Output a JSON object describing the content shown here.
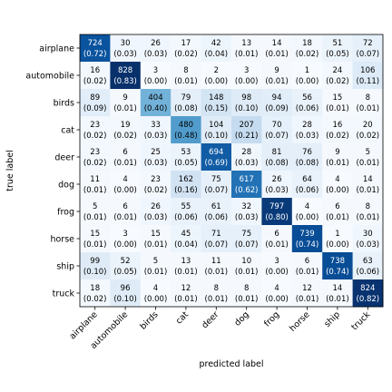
{
  "chart_data": {
    "type": "heatmap",
    "title": "",
    "xlabel": "predicted label",
    "ylabel": "true label",
    "x_categories": [
      "airplane",
      "automobile",
      "birds",
      "cat",
      "deer",
      "dog",
      "frog",
      "horse",
      "ship",
      "truck"
    ],
    "y_categories": [
      "airplane",
      "automobile",
      "birds",
      "cat",
      "deer",
      "dog",
      "frog",
      "horse",
      "ship",
      "truck"
    ],
    "counts": [
      [
        724,
        30,
        26,
        17,
        42,
        13,
        14,
        18,
        51,
        72
      ],
      [
        16,
        828,
        3,
        8,
        2,
        3,
        9,
        1,
        24,
        106
      ],
      [
        89,
        9,
        404,
        79,
        148,
        98,
        94,
        56,
        15,
        8
      ],
      [
        23,
        19,
        33,
        480,
        104,
        207,
        70,
        28,
        16,
        20
      ],
      [
        23,
        6,
        25,
        53,
        694,
        28,
        81,
        76,
        9,
        5
      ],
      [
        11,
        4,
        23,
        162,
        75,
        617,
        26,
        64,
        4,
        14
      ],
      [
        5,
        6,
        26,
        55,
        61,
        32,
        797,
        4,
        6,
        8
      ],
      [
        15,
        3,
        15,
        45,
        71,
        75,
        6,
        739,
        1,
        30
      ],
      [
        99,
        52,
        5,
        13,
        11,
        10,
        3,
        6,
        738,
        63
      ],
      [
        18,
        96,
        4,
        12,
        8,
        8,
        4,
        12,
        14,
        824
      ]
    ],
    "normalized": [
      [
        "0.72",
        "0.03",
        "0.03",
        "0.02",
        "0.04",
        "0.01",
        "0.01",
        "0.02",
        "0.05",
        "0.07"
      ],
      [
        "0.02",
        "0.83",
        "0.00",
        "0.01",
        "0.00",
        "0.00",
        "0.01",
        "0.00",
        "0.02",
        "0.11"
      ],
      [
        "0.09",
        "0.01",
        "0.40",
        "0.08",
        "0.15",
        "0.10",
        "0.09",
        "0.06",
        "0.01",
        "0.01"
      ],
      [
        "0.02",
        "0.02",
        "0.03",
        "0.48",
        "0.10",
        "0.21",
        "0.07",
        "0.03",
        "0.02",
        "0.02"
      ],
      [
        "0.02",
        "0.01",
        "0.03",
        "0.05",
        "0.69",
        "0.03",
        "0.08",
        "0.08",
        "0.01",
        "0.01"
      ],
      [
        "0.01",
        "0.00",
        "0.02",
        "0.16",
        "0.07",
        "0.62",
        "0.03",
        "0.06",
        "0.00",
        "0.01"
      ],
      [
        "0.01",
        "0.01",
        "0.03",
        "0.06",
        "0.06",
        "0.03",
        "0.80",
        "0.00",
        "0.01",
        "0.01"
      ],
      [
        "0.01",
        "0.00",
        "0.01",
        "0.04",
        "0.07",
        "0.07",
        "0.01",
        "0.74",
        "0.00",
        "0.03"
      ],
      [
        "0.10",
        "0.05",
        "0.01",
        "0.01",
        "0.01",
        "0.01",
        "0.00",
        "0.01",
        "0.74",
        "0.06"
      ],
      [
        "0.02",
        "0.10",
        "0.00",
        "0.01",
        "0.01",
        "0.01",
        "0.00",
        "0.01",
        "0.01",
        "0.82"
      ]
    ],
    "value_range": [
      0,
      0.83
    ],
    "colormap": "Blues",
    "colormap_low": "#f7fbff",
    "colormap_high": "#08306b",
    "grid": false,
    "legend": "none"
  }
}
